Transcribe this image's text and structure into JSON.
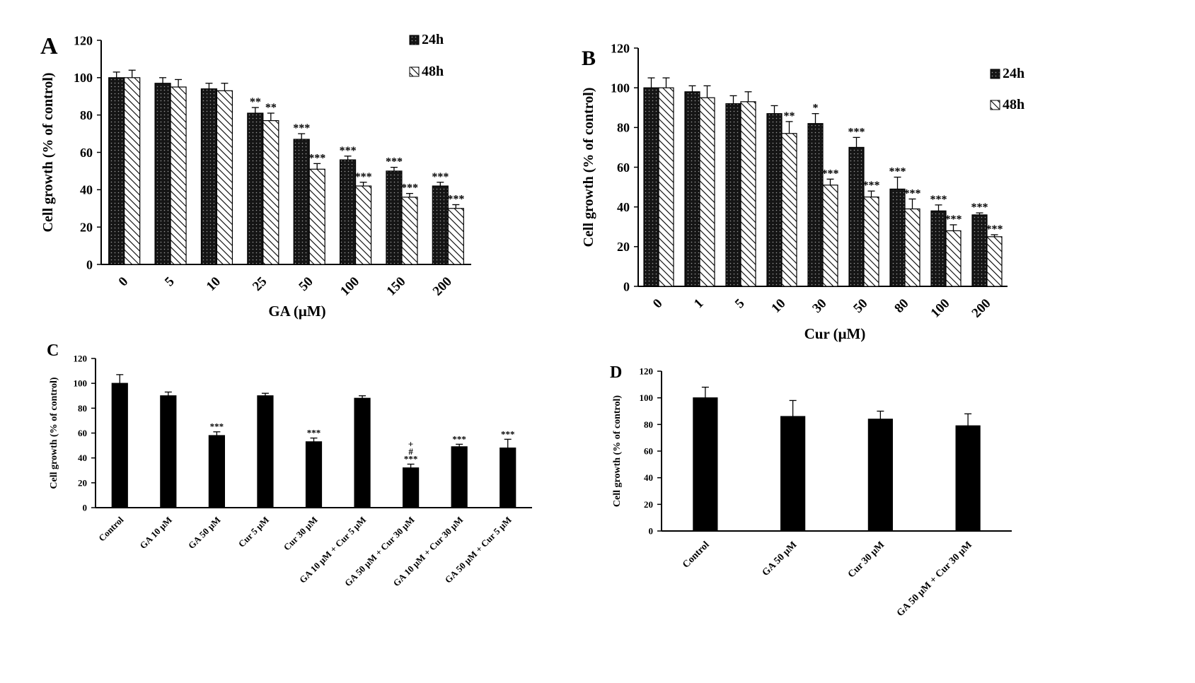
{
  "figure": {
    "colors": {
      "bar24": "#151515",
      "bar48": "#ffffff",
      "dots": "#9a9a9a",
      "axis": "#000000",
      "single": "#000000"
    }
  },
  "chart_data": [
    {
      "panel": "A",
      "type": "bar",
      "ylabel": "Cell growth (% of control)",
      "xlabel": "GA (μM)",
      "ylim": [
        0,
        120
      ],
      "yticks": [
        0,
        20,
        40,
        60,
        80,
        100,
        120
      ],
      "legend_position": "top-right",
      "categories": [
        "0",
        "5",
        "10",
        "25",
        "50",
        "100",
        "150",
        "200"
      ],
      "series": [
        {
          "name": "24h",
          "values": [
            100,
            97,
            94,
            81,
            67,
            56,
            50,
            42
          ],
          "errors": [
            3,
            3,
            3,
            3,
            3,
            2,
            2,
            2
          ],
          "labels": [
            "",
            "",
            "",
            "**",
            "***",
            "***",
            "***",
            "***"
          ]
        },
        {
          "name": "48h",
          "values": [
            100,
            95,
            93,
            77,
            51,
            42,
            36,
            30
          ],
          "errors": [
            4,
            4,
            4,
            4,
            3,
            2,
            2,
            2
          ],
          "labels": [
            "",
            "",
            "",
            "**",
            "***",
            "***",
            "***",
            "***"
          ]
        }
      ]
    },
    {
      "panel": "B",
      "type": "bar",
      "ylabel": "Cell growth (% of control)",
      "xlabel": "Cur (μM)",
      "ylim": [
        0,
        120
      ],
      "yticks": [
        0,
        20,
        40,
        60,
        80,
        100,
        120
      ],
      "legend_position": "top-right",
      "categories": [
        "0",
        "1",
        "5",
        "10",
        "30",
        "50",
        "80",
        "100",
        "200"
      ],
      "series": [
        {
          "name": "24h",
          "values": [
            100,
            98,
            92,
            87,
            82,
            70,
            49,
            38,
            36
          ],
          "errors": [
            5,
            3,
            4,
            4,
            5,
            5,
            6,
            3,
            1
          ],
          "labels": [
            "",
            "",
            "",
            "",
            "*",
            "***",
            "***",
            "***",
            "***"
          ]
        },
        {
          "name": "48h",
          "values": [
            100,
            95,
            93,
            77,
            51,
            45,
            39,
            28,
            25
          ],
          "errors": [
            5,
            6,
            5,
            6,
            3,
            3,
            5,
            3,
            1
          ],
          "labels": [
            "",
            "",
            "",
            "**",
            "***",
            "***",
            "***",
            "***",
            "***"
          ]
        }
      ]
    },
    {
      "panel": "C",
      "type": "bar",
      "ylabel": "Cell growth (% of control)",
      "xlabel": "",
      "ylim": [
        0,
        120
      ],
      "yticks": [
        0,
        20,
        40,
        60,
        80,
        100,
        120
      ],
      "categories": [
        "Control",
        "GA 10 μM",
        "GA 50 μM",
        "Cur 5 μM",
        "Cur 30 μM",
        "GA 10 μM + Cur 5 μM",
        "GA 50 μM + Cur 30 μM",
        "GA 10 μM + Cur 30 μM",
        "GA 50 μM + Cur 5 μM"
      ],
      "values": [
        100,
        90,
        58,
        90,
        53,
        88,
        32,
        49,
        48
      ],
      "errors": [
        7,
        3,
        3,
        2,
        3,
        2,
        3,
        2,
        7
      ],
      "labels": [
        "",
        "",
        "***",
        "",
        "***",
        "",
        "+\n#\n***",
        "***",
        "***"
      ]
    },
    {
      "panel": "D",
      "type": "bar",
      "ylabel": "Cell growth (% of control)",
      "xlabel": "",
      "ylim": [
        0,
        120
      ],
      "yticks": [
        0,
        20,
        40,
        60,
        80,
        100,
        120
      ],
      "categories": [
        "Control",
        "GA 50 μM",
        "Cur 30 μM",
        "GA 50 μM + Cur 30 μM"
      ],
      "values": [
        100,
        86,
        84,
        79
      ],
      "errors": [
        8,
        12,
        6,
        9
      ],
      "labels": [
        "",
        "",
        "",
        ""
      ]
    }
  ]
}
